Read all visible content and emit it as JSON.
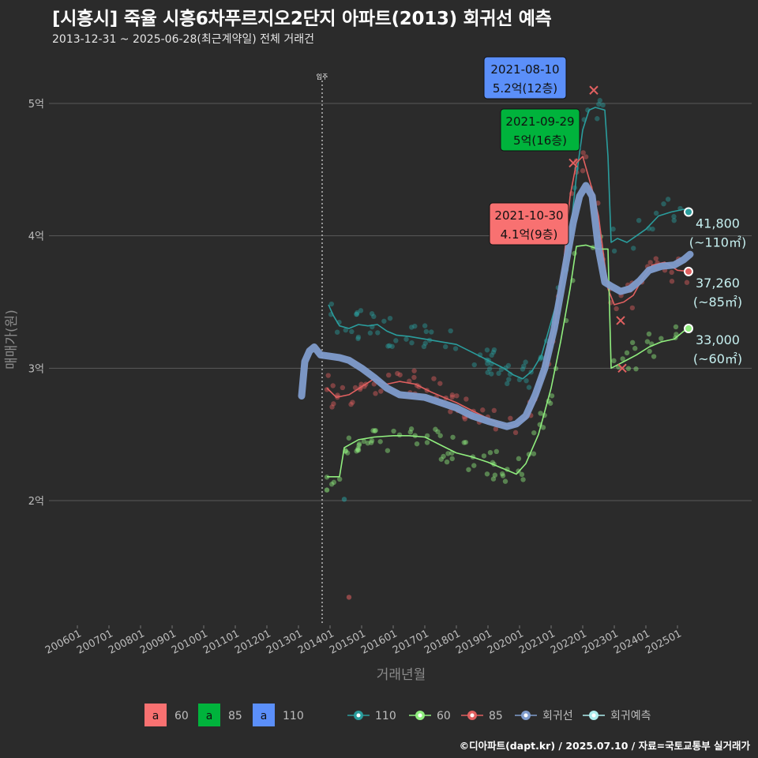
{
  "title": "[시흥시] 죽율 시흥6차푸르지오2단지 아파트(2013) 회귀선 예측",
  "subtitle": "2013-12-31 ~ 2025-06-28(최근계약일) 전체 거래건",
  "caption": "©디아파트(dapt.kr) / 2025.07.10 / 자료=국토교통부 실거래가",
  "colors": {
    "background": "#2b2b2b",
    "grid": "#5a5a5a",
    "s110": "#2a9d9d",
    "s60": "#90ee7e",
    "s85": "#e06060",
    "regression": "#7f9ccc",
    "forecast": "#aeeeee",
    "label60": "#f87171",
    "label85": "#00b33c",
    "label110": "#5b8ff9"
  },
  "chart_data": {
    "type": "line",
    "xlabel": "거래년월",
    "ylabel": "매매가(원)",
    "xlim": [
      2005.5,
      2026.0
    ],
    "ylim": [
      1.05,
      5.5
    ],
    "grid": true,
    "x_ticks": [
      {
        "label": "200601",
        "x": 2006.0
      },
      {
        "label": "200701",
        "x": 2007.0
      },
      {
        "label": "200801",
        "x": 2008.0
      },
      {
        "label": "200901",
        "x": 2009.0
      },
      {
        "label": "201001",
        "x": 2010.0
      },
      {
        "label": "201101",
        "x": 2011.0
      },
      {
        "label": "201201",
        "x": 2012.0
      },
      {
        "label": "201301",
        "x": 2013.0
      },
      {
        "label": "201401",
        "x": 2014.0
      },
      {
        "label": "201501",
        "x": 2015.0
      },
      {
        "label": "201601",
        "x": 2016.0
      },
      {
        "label": "201701",
        "x": 2017.0
      },
      {
        "label": "201801",
        "x": 2018.0
      },
      {
        "label": "201901",
        "x": 2019.0
      },
      {
        "label": "202001",
        "x": 2020.0
      },
      {
        "label": "202101",
        "x": 2021.0
      },
      {
        "label": "202201",
        "x": 2022.0
      },
      {
        "label": "202301",
        "x": 2023.0
      },
      {
        "label": "202401",
        "x": 2024.0
      },
      {
        "label": "202501",
        "x": 2025.0
      }
    ],
    "y_ticks": [
      {
        "label": "2억",
        "value": 2
      },
      {
        "label": "3억",
        "value": 3
      },
      {
        "label": "4억",
        "value": 4
      },
      {
        "label": "5억",
        "value": 5
      }
    ],
    "move_in": {
      "label": "입주",
      "x": 2013.75
    },
    "series": [
      {
        "name": "110",
        "color": "#2a9d9d",
        "points": [
          [
            2013.95,
            3.48
          ],
          [
            2014.1,
            3.4
          ],
          [
            2014.3,
            3.32
          ],
          [
            2014.6,
            3.3
          ],
          [
            2014.9,
            3.33
          ],
          [
            2015.2,
            3.32
          ],
          [
            2015.5,
            3.33
          ],
          [
            2015.8,
            3.28
          ],
          [
            2016.1,
            3.25
          ],
          [
            2016.5,
            3.24
          ],
          [
            2017.0,
            3.22
          ],
          [
            2017.5,
            3.2
          ],
          [
            2018.0,
            3.18
          ],
          [
            2018.5,
            3.12
          ],
          [
            2019.0,
            3.06
          ],
          [
            2019.5,
            3.0
          ],
          [
            2019.8,
            2.95
          ],
          [
            2020.1,
            2.92
          ],
          [
            2020.4,
            2.98
          ],
          [
            2020.7,
            3.1
          ],
          [
            2021.0,
            3.35
          ],
          [
            2021.3,
            3.6
          ],
          [
            2021.6,
            4.0
          ],
          [
            2021.8,
            4.45
          ],
          [
            2022.0,
            4.8
          ],
          [
            2022.2,
            4.95
          ],
          [
            2022.4,
            4.97
          ],
          [
            2022.7,
            4.95
          ],
          [
            2022.8,
            4.6
          ],
          [
            2022.9,
            3.95
          ],
          [
            2023.1,
            3.98
          ],
          [
            2023.4,
            3.95
          ],
          [
            2023.7,
            4.0
          ],
          [
            2024.0,
            4.05
          ],
          [
            2024.4,
            4.15
          ],
          [
            2024.8,
            4.18
          ],
          [
            2025.2,
            4.2
          ],
          [
            2025.4,
            4.19
          ]
        ]
      },
      {
        "name": "60",
        "color": "#90ee7e",
        "points": [
          [
            2013.9,
            2.18
          ],
          [
            2014.3,
            2.18
          ],
          [
            2014.45,
            2.4
          ],
          [
            2014.9,
            2.46
          ],
          [
            2015.4,
            2.48
          ],
          [
            2016.0,
            2.49
          ],
          [
            2016.5,
            2.49
          ],
          [
            2017.0,
            2.48
          ],
          [
            2017.5,
            2.42
          ],
          [
            2018.0,
            2.36
          ],
          [
            2018.5,
            2.33
          ],
          [
            2019.0,
            2.29
          ],
          [
            2019.5,
            2.24
          ],
          [
            2019.9,
            2.2
          ],
          [
            2020.2,
            2.28
          ],
          [
            2020.6,
            2.5
          ],
          [
            2021.0,
            2.85
          ],
          [
            2021.3,
            3.2
          ],
          [
            2021.6,
            3.6
          ],
          [
            2021.8,
            3.92
          ],
          [
            2022.1,
            3.93
          ],
          [
            2022.5,
            3.9
          ],
          [
            2022.8,
            3.9
          ],
          [
            2022.9,
            3.0
          ],
          [
            2023.3,
            3.05
          ],
          [
            2023.7,
            3.1
          ],
          [
            2024.1,
            3.16
          ],
          [
            2024.5,
            3.2
          ],
          [
            2024.9,
            3.22
          ],
          [
            2025.2,
            3.28
          ],
          [
            2025.4,
            3.3
          ]
        ]
      },
      {
        "name": "85",
        "color": "#e06060",
        "points": [
          [
            2013.9,
            2.85
          ],
          [
            2014.2,
            2.78
          ],
          [
            2014.6,
            2.8
          ],
          [
            2015.0,
            2.86
          ],
          [
            2015.4,
            2.92
          ],
          [
            2015.8,
            2.88
          ],
          [
            2016.2,
            2.9
          ],
          [
            2016.7,
            2.88
          ],
          [
            2017.2,
            2.82
          ],
          [
            2017.6,
            2.78
          ],
          [
            2018.0,
            2.74
          ],
          [
            2018.5,
            2.68
          ],
          [
            2019.0,
            2.62
          ],
          [
            2019.4,
            2.58
          ],
          [
            2019.8,
            2.56
          ],
          [
            2020.2,
            2.62
          ],
          [
            2020.5,
            2.75
          ],
          [
            2020.8,
            2.98
          ],
          [
            2021.1,
            3.3
          ],
          [
            2021.4,
            3.8
          ],
          [
            2021.6,
            4.3
          ],
          [
            2021.8,
            4.55
          ],
          [
            2022.0,
            4.6
          ],
          [
            2022.3,
            4.35
          ],
          [
            2022.5,
            4.15
          ],
          [
            2022.8,
            3.6
          ],
          [
            2023.0,
            3.48
          ],
          [
            2023.3,
            3.5
          ],
          [
            2023.6,
            3.55
          ],
          [
            2023.9,
            3.68
          ],
          [
            2024.2,
            3.78
          ],
          [
            2024.6,
            3.8
          ],
          [
            2025.0,
            3.74
          ],
          [
            2025.4,
            3.73
          ]
        ]
      },
      {
        "name": "회귀선",
        "color": "#7f9ccc",
        "points": [
          [
            2013.1,
            2.79
          ],
          [
            2013.2,
            3.05
          ],
          [
            2013.35,
            3.13
          ],
          [
            2013.5,
            3.16
          ],
          [
            2013.7,
            3.1
          ],
          [
            2014.0,
            3.09
          ],
          [
            2014.3,
            3.08
          ],
          [
            2014.6,
            3.06
          ],
          [
            2015.0,
            3.0
          ],
          [
            2015.4,
            2.93
          ],
          [
            2015.8,
            2.85
          ],
          [
            2016.2,
            2.8
          ],
          [
            2016.6,
            2.79
          ],
          [
            2017.0,
            2.78
          ],
          [
            2017.5,
            2.74
          ],
          [
            2018.0,
            2.7
          ],
          [
            2018.5,
            2.64
          ],
          [
            2019.0,
            2.6
          ],
          [
            2019.3,
            2.58
          ],
          [
            2019.6,
            2.56
          ],
          [
            2019.9,
            2.58
          ],
          [
            2020.2,
            2.64
          ],
          [
            2020.5,
            2.8
          ],
          [
            2020.8,
            3.0
          ],
          [
            2021.1,
            3.3
          ],
          [
            2021.4,
            3.7
          ],
          [
            2021.7,
            4.1
          ],
          [
            2021.9,
            4.3
          ],
          [
            2022.1,
            4.38
          ],
          [
            2022.3,
            4.3
          ],
          [
            2022.5,
            3.9
          ],
          [
            2022.7,
            3.65
          ],
          [
            2022.9,
            3.62
          ],
          [
            2023.2,
            3.58
          ],
          [
            2023.5,
            3.6
          ],
          [
            2023.8,
            3.66
          ],
          [
            2024.1,
            3.74
          ],
          [
            2024.5,
            3.77
          ],
          [
            2024.9,
            3.78
          ],
          [
            2025.2,
            3.82
          ],
          [
            2025.4,
            3.86
          ]
        ]
      }
    ],
    "annotations": [
      {
        "date": "2021-08-10",
        "price": "5.2억(12층)",
        "color": "#5b8ff9",
        "x": 2021.6,
        "y": 5.1
      },
      {
        "date": "2021-09-29",
        "price": "5억(16층)",
        "color": "#00b33c",
        "x": 2021.75,
        "y": 4.87
      },
      {
        "date": "2021-10-30",
        "price": "4.1억(9층)",
        "color": "#f87171",
        "x": 2021.83,
        "y": 4.12
      }
    ],
    "end_labels": [
      {
        "value": "41,800",
        "area": "(~110㎡)",
        "series": "110",
        "color": "#2a9d9d",
        "x": 2025.35,
        "y": 4.18
      },
      {
        "value": "37,260",
        "area": "(~85㎡)",
        "series": "85",
        "color": "#e06060",
        "x": 2025.35,
        "y": 3.73
      },
      {
        "value": "33,000",
        "area": "(~60㎡)",
        "series": "60",
        "color": "#90ee7e",
        "x": 2025.35,
        "y": 3.3
      }
    ],
    "legend": {
      "position": "bottom",
      "boxes": [
        {
          "key": "a",
          "label": "60",
          "color": "#f87171"
        },
        {
          "key": "a",
          "label": "85",
          "color": "#00b33c"
        },
        {
          "key": "a",
          "label": "110",
          "color": "#5b8ff9"
        }
      ],
      "lines": [
        {
          "label": "110",
          "color": "#2a9d9d"
        },
        {
          "label": "60",
          "color": "#90ee7e"
        },
        {
          "label": "85",
          "color": "#e06060"
        },
        {
          "label": "회귀선",
          "color": "#7f9ccc"
        },
        {
          "label": "회귀예측",
          "color": "#aeeeee"
        }
      ]
    }
  }
}
